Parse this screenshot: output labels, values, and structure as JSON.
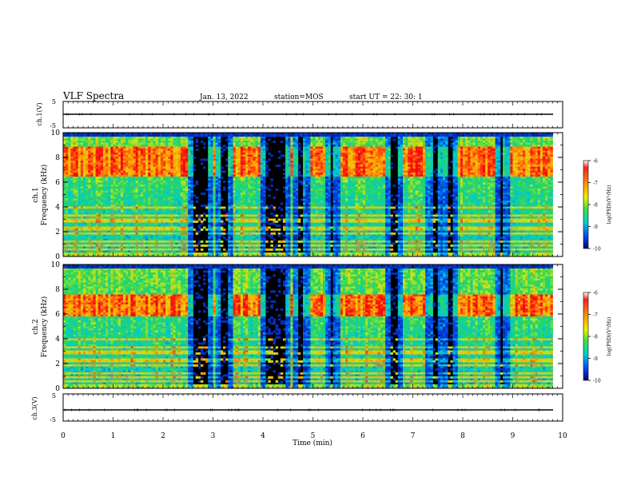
{
  "header": {
    "title": "VLF Spectra",
    "date": "Jan. 13, 2022",
    "station": "station=MOS",
    "start": "start UT =  22: 30: 1"
  },
  "chart_data": [
    {
      "type": "line",
      "name": "ch.1 waveform",
      "ylabel": "ch.1(V)",
      "ylim": [
        -5,
        5
      ],
      "yticks": [
        "5",
        "-5"
      ],
      "xlim": [
        0,
        10
      ],
      "x": [
        0,
        9.8
      ],
      "y": [
        0,
        0
      ]
    },
    {
      "type": "heatmap",
      "name": "ch.1 spectrogram",
      "ylabel": "ch.1\nFrequency (kHz)",
      "ylabel_line1": "ch.1",
      "ylabel_line2": "Frequency (kHz)",
      "ylim": [
        0,
        10
      ],
      "yticks": [
        "0",
        "2",
        "4",
        "6",
        "8",
        "10"
      ],
      "xlim": [
        0,
        9.8
      ],
      "low_activity_minutes": [
        [
          2.62,
          2.88
        ],
        [
          3.15,
          3.3
        ],
        [
          4.05,
          4.45
        ],
        [
          4.72,
          4.82
        ],
        [
          5.35,
          5.42
        ],
        [
          6.55,
          6.7
        ],
        [
          7.38,
          7.5
        ],
        [
          7.7,
          7.8
        ],
        [
          8.75,
          8.82
        ]
      ],
      "enhanced_band_khz": [
        6.5,
        8.8
      ]
    },
    {
      "type": "heatmap",
      "name": "ch.2 spectrogram",
      "ylabel": "ch.2\nFrequency (kHz)",
      "ylabel_line1": "ch.2",
      "ylabel_line2": "Frequency (kHz)",
      "ylim": [
        0,
        10
      ],
      "yticks": [
        "0",
        "2",
        "4",
        "6",
        "8",
        "10"
      ],
      "xlim": [
        0,
        9.8
      ],
      "low_activity_minutes": [
        [
          2.62,
          2.88
        ],
        [
          3.15,
          3.3
        ],
        [
          4.05,
          4.45
        ],
        [
          4.72,
          4.82
        ],
        [
          5.35,
          5.42
        ],
        [
          6.55,
          6.7
        ],
        [
          7.38,
          7.5
        ],
        [
          7.7,
          7.8
        ],
        [
          8.75,
          8.82
        ]
      ],
      "enhanced_band_khz": [
        5.8,
        7.6
      ]
    },
    {
      "type": "line",
      "name": "ch.3 waveform",
      "ylabel": "ch.3(V)",
      "ylim": [
        -5,
        5
      ],
      "yticks": [
        "5",
        "-5"
      ],
      "xlim": [
        0,
        10
      ],
      "x": [
        0,
        9.8
      ],
      "y": [
        0,
        0
      ]
    }
  ],
  "colorbar": {
    "label": "log(PSD)(V²/Hz)",
    "ticks": [
      "-6",
      "-7",
      "-8",
      "-9",
      "-10"
    ],
    "range": [
      -10,
      -6
    ]
  },
  "xaxis": {
    "label": "Time (min)",
    "ticks": [
      "0",
      "1",
      "2",
      "3",
      "4",
      "5",
      "6",
      "7",
      "8",
      "9",
      "10"
    ],
    "range": [
      0,
      10
    ]
  }
}
